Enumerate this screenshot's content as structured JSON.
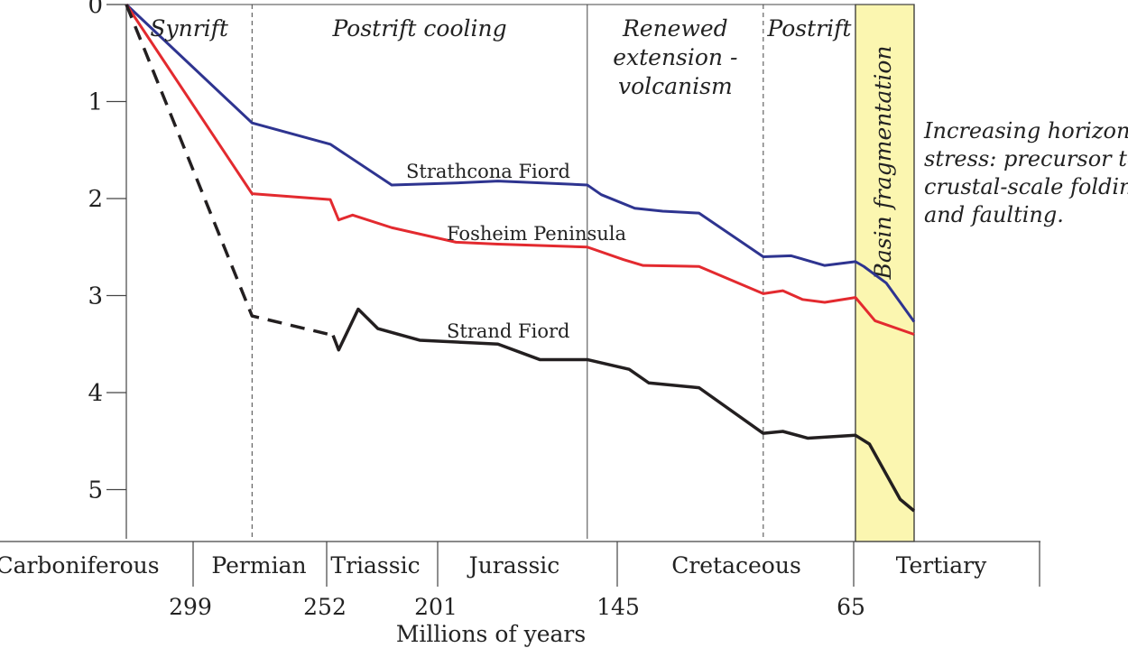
{
  "chart_data": {
    "type": "line",
    "title": "",
    "xlabel": "Millions of years",
    "ylabel": "",
    "y_axis": {
      "ticks": [
        "0",
        "1",
        "2",
        "3",
        "4",
        "5"
      ],
      "range": [
        0,
        5.45
      ],
      "inverted": true
    },
    "x_axis": {
      "age_ticks": [
        {
          "label": "299",
          "age": 299
        },
        {
          "label": "252",
          "age": 252
        },
        {
          "label": "201",
          "age": 201
        },
        {
          "label": "145",
          "age": 145
        },
        {
          "label": "65",
          "age": 65
        }
      ],
      "time_range": [
        330,
        48
      ]
    },
    "periods": [
      {
        "label": "Carboniferous",
        "start": 330,
        "end": 299
      },
      {
        "label": "Permian",
        "start": 299,
        "end": 252
      },
      {
        "label": "Triassic",
        "start": 252,
        "end": 201
      },
      {
        "label": "Jurassic",
        "start": 201,
        "end": 145
      },
      {
        "label": "Cretaceous",
        "start": 145,
        "end": 65
      },
      {
        "label": "Tertiary",
        "start": 65,
        "end": 48
      }
    ],
    "phases": [
      {
        "label": "Synrift",
        "start": 330,
        "end": 285
      },
      {
        "label": "Postrift cooling",
        "start": 285,
        "end": 165
      },
      {
        "label": "Renewed extension - volcanism",
        "lines": [
          "Renewed",
          "extension -",
          "volcanism"
        ],
        "start": 165,
        "end": 102
      },
      {
        "label": "Postrift",
        "start": 102,
        "end": 69
      }
    ],
    "phase_boundaries": [
      {
        "age": 285,
        "style": "dashed"
      },
      {
        "age": 165,
        "style": "solid"
      },
      {
        "age": 102,
        "style": "dashed"
      }
    ],
    "highlight": {
      "label": "Basin fragmentation",
      "start": 69,
      "end": 48,
      "color": "#fbf6b0"
    },
    "annotation": {
      "lines": [
        "Increasing horizontal",
        "stress: precursor to",
        "crustal-scale folding",
        "and faulting."
      ]
    },
    "series": [
      {
        "name": "Strathcona Fiord",
        "color": "#2e3490",
        "dashed_until_index": -1,
        "x": [
          330,
          285,
          257,
          235,
          212,
          197,
          165,
          160,
          148,
          138,
          125,
          102,
          92,
          80,
          69,
          66,
          58,
          53,
          48
        ],
        "y": [
          0.0,
          1.22,
          1.44,
          1.86,
          1.84,
          1.82,
          1.86,
          1.96,
          2.1,
          2.13,
          2.15,
          2.6,
          2.59,
          2.69,
          2.65,
          2.7,
          2.87,
          3.07,
          3.27
        ]
      },
      {
        "name": "Fosheim Peninsula",
        "color": "#e32a2f",
        "dashed_until_index": -1,
        "x": [
          330,
          285,
          257,
          254,
          249,
          235,
          212,
          197,
          165,
          152,
          145,
          125,
          102,
          95,
          88,
          80,
          69,
          62,
          48
        ],
        "y": [
          0.0,
          1.95,
          2.01,
          2.22,
          2.17,
          2.3,
          2.45,
          2.47,
          2.5,
          2.63,
          2.69,
          2.7,
          2.98,
          2.95,
          3.04,
          3.07,
          3.02,
          3.26,
          3.4
        ]
      },
      {
        "name": "Strand Fiord",
        "color": "#231f20",
        "dashed_until_index": 2,
        "x": [
          330,
          285,
          256,
          254,
          247,
          240,
          225,
          197,
          182,
          165,
          150,
          143,
          125,
          102,
          95,
          86,
          69,
          64,
          53,
          48
        ],
        "y": [
          0.0,
          3.21,
          3.41,
          3.56,
          3.14,
          3.34,
          3.46,
          3.5,
          3.66,
          3.66,
          3.76,
          3.9,
          3.95,
          4.42,
          4.4,
          4.47,
          4.44,
          4.53,
          5.1,
          5.22
        ]
      }
    ]
  }
}
